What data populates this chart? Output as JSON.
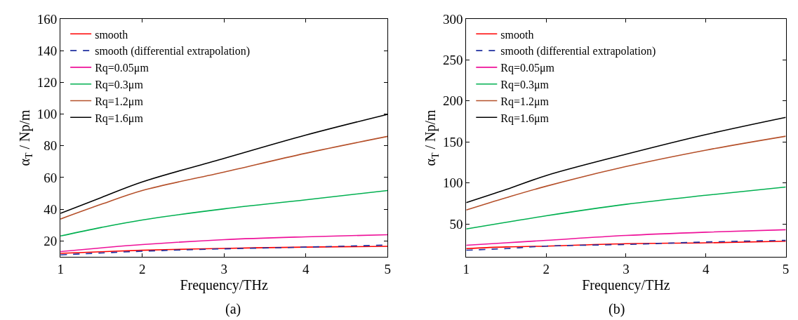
{
  "chart_data": [
    {
      "type": "line",
      "xlabel": "Frequency/THz",
      "ylabel": "α$_{T}$ / Np/m",
      "annotations": [
        "(a)"
      ],
      "x": [
        1,
        1.5,
        2,
        3,
        4,
        5
      ],
      "xlim": [
        1,
        5
      ],
      "ylim": [
        10,
        160
      ],
      "xticks": [
        1,
        2,
        3,
        4,
        5
      ],
      "yticks": [
        20,
        40,
        60,
        80,
        100,
        120,
        140,
        160
      ],
      "legend": "top left",
      "series": [
        {
          "name": "smooth",
          "color": "#ff0000",
          "line_style": "solid",
          "values": [
            12.2,
            13.2,
            14.1,
            15.3,
            16.1,
            16.6
          ]
        },
        {
          "name": "smooth (differential extrapolation)",
          "color": "#1f2f9f",
          "line_style": "dashed",
          "values": [
            11.2,
            12.4,
            13.5,
            15,
            16.1,
            17.4
          ]
        },
        {
          "name": "Rq=0.05μm",
          "color": "#ee1199",
          "line_style": "solid",
          "values": [
            13.3,
            15.6,
            17.7,
            20.8,
            22.6,
            23.9
          ]
        },
        {
          "name": "Rq=0.3μm",
          "color": "#00b050",
          "line_style": "solid",
          "values": [
            23.1,
            28.5,
            33.2,
            40.2,
            45.9,
            51.8
          ]
        },
        {
          "name": "Rq=1.2μm",
          "color": "#b5502a",
          "line_style": "solid",
          "values": [
            33.8,
            43.1,
            51.8,
            63.4,
            75.3,
            85.9
          ]
        },
        {
          "name": "Rq=1.6μm",
          "color": "#000000",
          "line_style": "solid",
          "values": [
            37.4,
            47.4,
            57.2,
            72,
            86.7,
            99.8
          ]
        }
      ]
    },
    {
      "type": "line",
      "xlabel": "Frequency/THz",
      "ylabel": "α$_{T}$ / Np/m",
      "annotations": [
        "(b)"
      ],
      "x": [
        1,
        1.5,
        2,
        3,
        4,
        5
      ],
      "xlim": [
        1,
        5
      ],
      "ylim": [
        10,
        300
      ],
      "xticks": [
        1,
        2,
        3,
        4,
        5
      ],
      "yticks": [
        50,
        100,
        150,
        200,
        250,
        300
      ],
      "legend": "top left",
      "series": [
        {
          "name": "smooth",
          "color": "#ff0000",
          "line_style": "solid",
          "values": [
            20,
            22,
            23,
            26,
            27,
            29
          ]
        },
        {
          "name": "smooth (differential extrapolation)",
          "color": "#1f2f9f",
          "line_style": "dashed",
          "values": [
            18,
            20,
            23,
            25,
            28,
            30
          ]
        },
        {
          "name": "Rq=0.05μm",
          "color": "#ee1199",
          "line_style": "solid",
          "values": [
            24,
            27,
            30,
            36,
            40,
            43
          ]
        },
        {
          "name": "Rq=0.3μm",
          "color": "#00b050",
          "line_style": "solid",
          "values": [
            44,
            52,
            60,
            74,
            85,
            95
          ]
        },
        {
          "name": "Rq=1.2μm",
          "color": "#b5502a",
          "line_style": "solid",
          "values": [
            67,
            82,
            96,
            120,
            140,
            157
          ]
        },
        {
          "name": "Rq=1.6μm",
          "color": "#000000",
          "line_style": "solid",
          "values": [
            76,
            92,
            109,
            135,
            159,
            180
          ]
        }
      ]
    }
  ]
}
